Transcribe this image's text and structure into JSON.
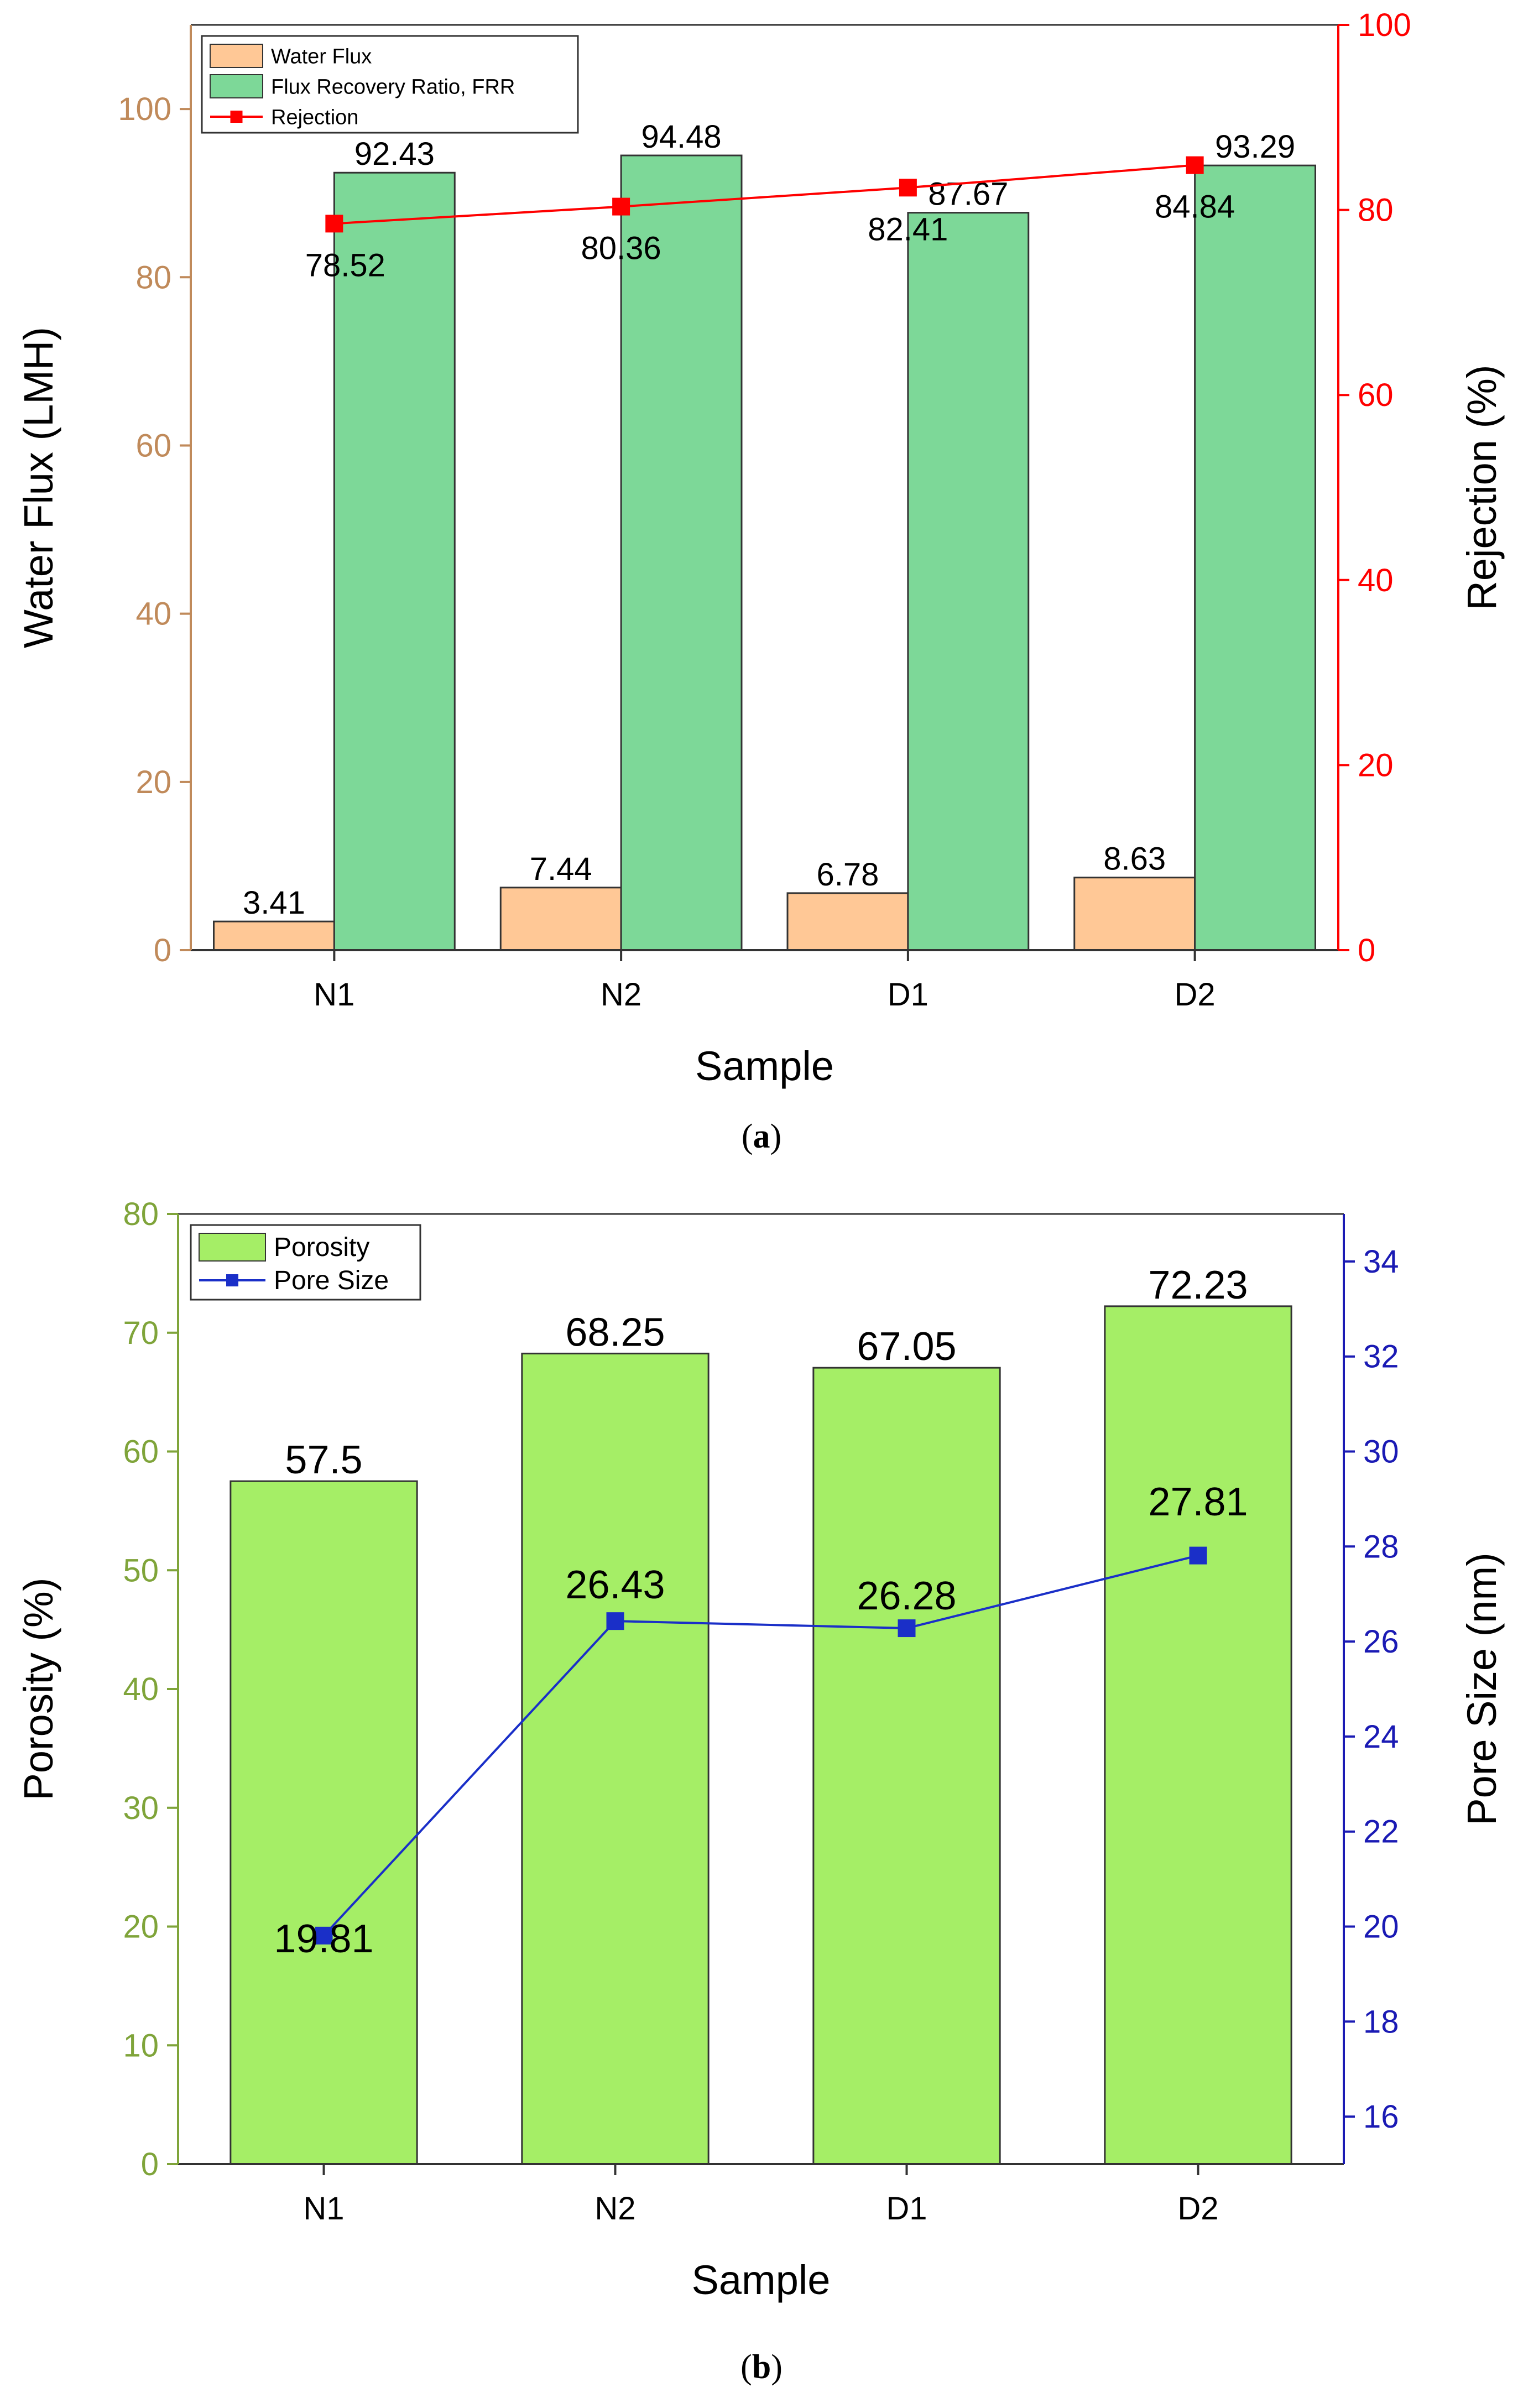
{
  "chart_data": [
    {
      "type": "bar",
      "panel_label_pre": "(",
      "panel_label": "a",
      "panel_label_post": ")",
      "categories": [
        "N1",
        "N2",
        "D1",
        "D2"
      ],
      "xlabel": "Sample",
      "ylabel_left": "Water Flux (LMH)",
      "ylabel_right": "Rejection (%)",
      "ylim_left": [
        0,
        110
      ],
      "yticks_left": [
        0,
        20,
        40,
        60,
        80,
        100
      ],
      "ylim_right": [
        0,
        100
      ],
      "yticks_right": [
        0,
        20,
        40,
        60,
        80,
        100
      ],
      "series": [
        {
          "name": "Water Flux",
          "kind": "bar",
          "axis": "left",
          "color": "#FFC896",
          "values": [
            3.41,
            7.44,
            6.78,
            8.63
          ],
          "labels": [
            "3.41",
            "7.44",
            "6.78",
            "8.63"
          ]
        },
        {
          "name": "Flux Recovery Ratio, FRR",
          "kind": "bar",
          "axis": "left",
          "color": "#7DD898",
          "values": [
            92.43,
            94.48,
            87.67,
            93.29
          ],
          "labels": [
            "92.43",
            "94.48",
            "87.67",
            "93.29"
          ]
        },
        {
          "name": "Rejection",
          "kind": "line",
          "axis": "right",
          "color": "#FF0000",
          "values": [
            78.52,
            80.36,
            82.41,
            84.84
          ],
          "labels": [
            "78.52",
            "80.36",
            "82.41",
            "84.84"
          ]
        }
      ],
      "colors": {
        "left_axis": "#C08A5A",
        "right_axis": "#FF0000"
      },
      "legend_position": "top-left"
    },
    {
      "type": "bar",
      "panel_label_pre": "(",
      "panel_label": "b",
      "panel_label_post": ")",
      "categories": [
        "N1",
        "N2",
        "D1",
        "D2"
      ],
      "xlabel": "Sample",
      "ylabel_left": "Porosity (%)",
      "ylabel_right": "Pore Size (nm)",
      "ylim_left": [
        0,
        80
      ],
      "yticks_left": [
        0,
        10,
        20,
        30,
        40,
        50,
        60,
        70,
        80
      ],
      "ylim_right": [
        15,
        35
      ],
      "yticks_right": [
        16,
        18,
        20,
        22,
        24,
        26,
        28,
        30,
        32,
        34
      ],
      "series": [
        {
          "name": "Porosity",
          "kind": "bar",
          "axis": "left",
          "color": "#A5EE66",
          "values": [
            57.5,
            68.25,
            67.05,
            72.23
          ],
          "labels": [
            "57.5",
            "68.25",
            "67.05",
            "72.23"
          ]
        },
        {
          "name": "Pore Size",
          "kind": "line",
          "axis": "right",
          "color": "#1A2FC8",
          "values": [
            19.81,
            26.43,
            26.28,
            27.81
          ],
          "labels": [
            "19.81",
            "26.43",
            "26.28",
            "27.81"
          ]
        }
      ],
      "colors": {
        "left_axis": "#7FA43A",
        "right_axis": "#1A1AB4"
      },
      "legend_position": "top-left"
    }
  ]
}
